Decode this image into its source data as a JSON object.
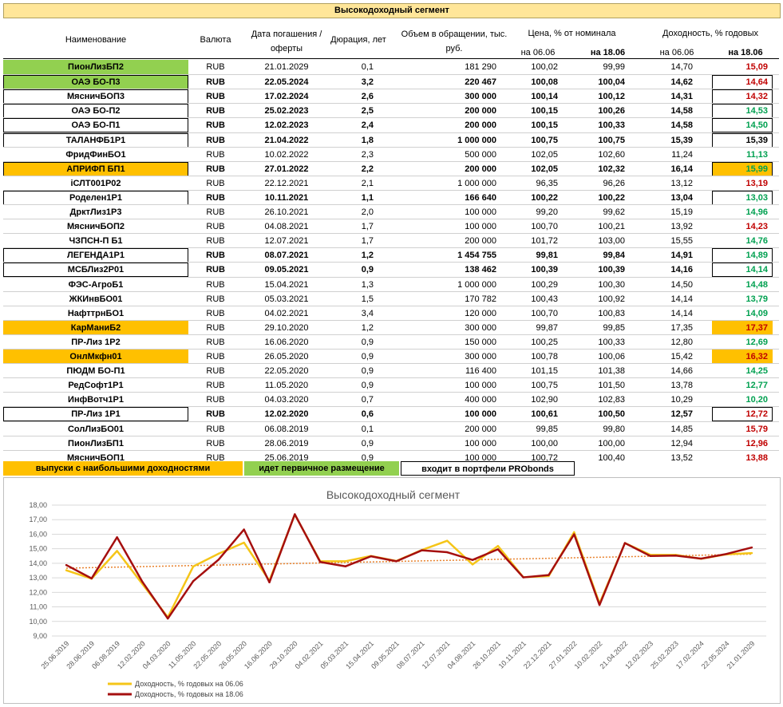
{
  "table": {
    "title": "Высокодоходный сегмент",
    "headers": {
      "name": "Наименование",
      "currency": "Валюта",
      "maturity": "Дата погашения / оферты",
      "duration": "Дюрация, лет",
      "volume": "Объем в обращении, тыс. руб.",
      "price": "Цена, % от номинала",
      "yield": "Доходность, % годовых",
      "price_d1": "на 06.06",
      "price_d2": "на 18.06",
      "yield_d1": "на 06.06",
      "yield_d2": "на 18.06"
    },
    "rows": [
      {
        "name": "ПионЛизБП2",
        "cur": "RUB",
        "date": "21.01.2029",
        "dur": "0,1",
        "vol": "181 290",
        "p1": "100,02",
        "p2": "99,99",
        "y1": "14,70",
        "y2": "15,09",
        "name_bg": "#92d050",
        "y2_color": "#c00000",
        "y2_bg": "",
        "bold": false,
        "name_box": false,
        "y2_box": false
      },
      {
        "name": "ОАЭ  БО-П3",
        "cur": "RUB",
        "date": "22.05.2024",
        "dur": "3,2",
        "vol": "220 467",
        "p1": "100,08",
        "p2": "100,04",
        "y1": "14,62",
        "y2": "14,64",
        "name_bg": "#92d050",
        "y2_color": "#c00000",
        "y2_bg": "",
        "bold": true,
        "name_box": true,
        "y2_box": true
      },
      {
        "name": "МясничБОП3",
        "cur": "RUB",
        "date": "17.02.2024",
        "dur": "2,6",
        "vol": "300 000",
        "p1": "100,14",
        "p2": "100,12",
        "y1": "14,31",
        "y2": "14,32",
        "name_bg": "",
        "y2_color": "#c00000",
        "y2_bg": "",
        "bold": true,
        "name_box": true,
        "y2_box": true
      },
      {
        "name": "ОАЭ  БО-П2",
        "cur": "RUB",
        "date": "25.02.2023",
        "dur": "2,5",
        "vol": "200 000",
        "p1": "100,15",
        "p2": "100,26",
        "y1": "14,58",
        "y2": "14,53",
        "name_bg": "",
        "y2_color": "#00a050",
        "y2_bg": "",
        "bold": true,
        "name_box": true,
        "y2_box": true
      },
      {
        "name": "ОАЭ  БО-П1",
        "cur": "RUB",
        "date": "12.02.2023",
        "dur": "2,4",
        "vol": "200 000",
        "p1": "100,15",
        "p2": "100,33",
        "y1": "14,58",
        "y2": "14,50",
        "name_bg": "",
        "y2_color": "#00a050",
        "y2_bg": "",
        "bold": true,
        "name_box": true,
        "y2_box": true
      },
      {
        "name": "ТАЛАНФБ1Р1",
        "cur": "RUB",
        "date": "21.04.2022",
        "dur": "1,8",
        "vol": "1 000 000",
        "p1": "100,75",
        "p2": "100,75",
        "y1": "15,39",
        "y2": "15,39",
        "name_bg": "",
        "y2_color": "#000000",
        "y2_bg": "",
        "bold": true,
        "name_box": true,
        "y2_box": true
      },
      {
        "name": "ФридФинБО1",
        "cur": "RUB",
        "date": "10.02.2022",
        "dur": "2,3",
        "vol": "500 000",
        "p1": "102,05",
        "p2": "102,60",
        "y1": "11,24",
        "y2": "11,13",
        "name_bg": "",
        "y2_color": "#00a050",
        "y2_bg": "",
        "bold": false,
        "name_box": false,
        "y2_box": false
      },
      {
        "name": "АПРИФП БП1",
        "cur": "RUB",
        "date": "27.01.2022",
        "dur": "2,2",
        "vol": "200 000",
        "p1": "102,05",
        "p2": "102,32",
        "y1": "16,14",
        "y2": "15,99",
        "name_bg": "#ffc000",
        "y2_color": "#00a050",
        "y2_bg": "#ffc000",
        "bold": true,
        "name_box": true,
        "y2_box": true
      },
      {
        "name": "iСЛТ001Р02",
        "cur": "RUB",
        "date": "22.12.2021",
        "dur": "2,1",
        "vol": "1 000 000",
        "p1": "96,35",
        "p2": "96,26",
        "y1": "13,12",
        "y2": "13,19",
        "name_bg": "",
        "y2_color": "#c00000",
        "y2_bg": "",
        "bold": false,
        "name_box": false,
        "y2_box": false
      },
      {
        "name": "Роделен1Р1",
        "cur": "RUB",
        "date": "10.11.2021",
        "dur": "1,1",
        "vol": "166 640",
        "p1": "100,22",
        "p2": "100,22",
        "y1": "13,04",
        "y2": "13,03",
        "name_bg": "",
        "y2_color": "#00a050",
        "y2_bg": "",
        "bold": true,
        "name_box": true,
        "y2_box": true
      },
      {
        "name": "ДрктЛиз1Р3",
        "cur": "RUB",
        "date": "26.10.2021",
        "dur": "2,0",
        "vol": "100 000",
        "p1": "99,20",
        "p2": "99,62",
        "y1": "15,19",
        "y2": "14,96",
        "name_bg": "",
        "y2_color": "#00a050",
        "y2_bg": "",
        "bold": false,
        "name_box": false,
        "y2_box": false
      },
      {
        "name": "МясничБОП2",
        "cur": "RUB",
        "date": "04.08.2021",
        "dur": "1,7",
        "vol": "100 000",
        "p1": "100,70",
        "p2": "100,21",
        "y1": "13,92",
        "y2": "14,23",
        "name_bg": "",
        "y2_color": "#c00000",
        "y2_bg": "",
        "bold": false,
        "name_box": false,
        "y2_box": false
      },
      {
        "name": "ЧЗПСН-П Б1",
        "cur": "RUB",
        "date": "12.07.2021",
        "dur": "1,7",
        "vol": "200 000",
        "p1": "101,72",
        "p2": "103,00",
        "y1": "15,55",
        "y2": "14,76",
        "name_bg": "",
        "y2_color": "#00a050",
        "y2_bg": "",
        "bold": false,
        "name_box": false,
        "y2_box": false
      },
      {
        "name": "ЛЕГЕНДА1Р1",
        "cur": "RUB",
        "date": "08.07.2021",
        "dur": "1,2",
        "vol": "1 454 755",
        "p1": "99,81",
        "p2": "99,84",
        "y1": "14,91",
        "y2": "14,89",
        "name_bg": "",
        "y2_color": "#00a050",
        "y2_bg": "",
        "bold": true,
        "name_box": true,
        "y2_box": true
      },
      {
        "name": "МСБЛиз2Р01",
        "cur": "RUB",
        "date": "09.05.2021",
        "dur": "0,9",
        "vol": "138 462",
        "p1": "100,39",
        "p2": "100,39",
        "y1": "14,16",
        "y2": "14,14",
        "name_bg": "",
        "y2_color": "#00a050",
        "y2_bg": "",
        "bold": true,
        "name_box": true,
        "y2_box": true
      },
      {
        "name": "ФЭС-АгроБ1",
        "cur": "RUB",
        "date": "15.04.2021",
        "dur": "1,3",
        "vol": "1 000 000",
        "p1": "100,29",
        "p2": "100,30",
        "y1": "14,50",
        "y2": "14,48",
        "name_bg": "",
        "y2_color": "#00a050",
        "y2_bg": "",
        "bold": false,
        "name_box": false,
        "y2_box": false
      },
      {
        "name": "ЖКИнвБО01",
        "cur": "RUB",
        "date": "05.03.2021",
        "dur": "1,5",
        "vol": "170 782",
        "p1": "100,43",
        "p2": "100,92",
        "y1": "14,14",
        "y2": "13,79",
        "name_bg": "",
        "y2_color": "#00a050",
        "y2_bg": "",
        "bold": false,
        "name_box": false,
        "y2_box": false
      },
      {
        "name": "НафттрнБО1",
        "cur": "RUB",
        "date": "04.02.2021",
        "dur": "3,4",
        "vol": "120 000",
        "p1": "100,70",
        "p2": "100,83",
        "y1": "14,14",
        "y2": "14,09",
        "name_bg": "",
        "y2_color": "#00a050",
        "y2_bg": "",
        "bold": false,
        "name_box": false,
        "y2_box": false
      },
      {
        "name": "КарМаниБ2",
        "cur": "RUB",
        "date": "29.10.2020",
        "dur": "1,2",
        "vol": "300 000",
        "p1": "99,87",
        "p2": "99,85",
        "y1": "17,35",
        "y2": "17,37",
        "name_bg": "#ffc000",
        "y2_color": "#c00000",
        "y2_bg": "#ffc000",
        "bold": false,
        "name_box": false,
        "y2_box": false
      },
      {
        "name": "ПР-Лиз 1Р2",
        "cur": "RUB",
        "date": "16.06.2020",
        "dur": "0,9",
        "vol": "150 000",
        "p1": "100,25",
        "p2": "100,33",
        "y1": "12,80",
        "y2": "12,69",
        "name_bg": "",
        "y2_color": "#00a050",
        "y2_bg": "",
        "bold": false,
        "name_box": false,
        "y2_box": false
      },
      {
        "name": "ОнлМкфн01",
        "cur": "RUB",
        "date": "26.05.2020",
        "dur": "0,9",
        "vol": "300 000",
        "p1": "100,78",
        "p2": "100,06",
        "y1": "15,42",
        "y2": "16,32",
        "name_bg": "#ffc000",
        "y2_color": "#c00000",
        "y2_bg": "#ffc000",
        "bold": false,
        "name_box": false,
        "y2_box": false
      },
      {
        "name": "ПЮДМ БО-П1",
        "cur": "RUB",
        "date": "22.05.2020",
        "dur": "0,9",
        "vol": "116 400",
        "p1": "101,15",
        "p2": "101,38",
        "y1": "14,66",
        "y2": "14,25",
        "name_bg": "",
        "y2_color": "#00a050",
        "y2_bg": "",
        "bold": false,
        "name_box": false,
        "y2_box": false
      },
      {
        "name": "РедСофт1Р1",
        "cur": "RUB",
        "date": "11.05.2020",
        "dur": "0,9",
        "vol": "100 000",
        "p1": "100,75",
        "p2": "101,50",
        "y1": "13,78",
        "y2": "12,77",
        "name_bg": "",
        "y2_color": "#00a050",
        "y2_bg": "",
        "bold": false,
        "name_box": false,
        "y2_box": false
      },
      {
        "name": "ИнфВотч1Р1",
        "cur": "RUB",
        "date": "04.03.2020",
        "dur": "0,7",
        "vol": "400 000",
        "p1": "102,90",
        "p2": "102,83",
        "y1": "10,29",
        "y2": "10,20",
        "name_bg": "",
        "y2_color": "#00a050",
        "y2_bg": "",
        "bold": false,
        "name_box": false,
        "y2_box": false
      },
      {
        "name": "ПР-Лиз 1Р1",
        "cur": "RUB",
        "date": "12.02.2020",
        "dur": "0,6",
        "vol": "100 000",
        "p1": "100,61",
        "p2": "100,50",
        "y1": "12,57",
        "y2": "12,72",
        "name_bg": "",
        "y2_color": "#c00000",
        "y2_bg": "",
        "bold": true,
        "name_box": true,
        "y2_box": true
      },
      {
        "name": "СолЛизБО01",
        "cur": "RUB",
        "date": "06.08.2019",
        "dur": "0,1",
        "vol": "200 000",
        "p1": "99,85",
        "p2": "99,80",
        "y1": "14,85",
        "y2": "15,79",
        "name_bg": "",
        "y2_color": "#c00000",
        "y2_bg": "",
        "bold": false,
        "name_box": false,
        "y2_box": false
      },
      {
        "name": "ПионЛизБП1",
        "cur": "RUB",
        "date": "28.06.2019",
        "dur": "0,9",
        "vol": "100 000",
        "p1": "100,00",
        "p2": "100,00",
        "y1": "12,94",
        "y2": "12,96",
        "name_bg": "",
        "y2_color": "#c00000",
        "y2_bg": "",
        "bold": false,
        "name_box": false,
        "y2_box": false
      },
      {
        "name": "МясничБОП1",
        "cur": "RUB",
        "date": "25.06.2019",
        "dur": "0,9",
        "vol": "100 000",
        "p1": "100,72",
        "p2": "100,40",
        "y1": "13,52",
        "y2": "13,88",
        "name_bg": "",
        "y2_color": "#c00000",
        "y2_bg": "",
        "bold": false,
        "name_box": false,
        "y2_box": false
      }
    ],
    "legend": {
      "orange": {
        "label": "выпуски с наибольшими доходностями",
        "color": "#ffc000"
      },
      "green": {
        "label": "идет первичное размещение",
        "color": "#92d050"
      },
      "boxed": {
        "label": "входит в портфели PRObonds",
        "color": "#ffffff"
      }
    }
  },
  "chart_data": {
    "type": "line",
    "title": "Высокодоходный сегмент",
    "categories": [
      "25.06.2019",
      "28.06.2019",
      "06.08.2019",
      "12.02.2020",
      "04.03.2020",
      "11.05.2020",
      "22.05.2020",
      "26.05.2020",
      "16.06.2020",
      "29.10.2020",
      "04.02.2021",
      "05.03.2021",
      "15.04.2021",
      "09.05.2021",
      "08.07.2021",
      "12.07.2021",
      "04.08.2021",
      "26.10.2021",
      "10.11.2021",
      "22.12.2021",
      "27.01.2022",
      "10.02.2022",
      "21.04.2022",
      "12.02.2023",
      "25.02.2023",
      "17.02.2024",
      "22.05.2024",
      "21.01.2029"
    ],
    "series": [
      {
        "name": "Доходность, % годовых на 06.06",
        "color": "#f5c518",
        "values": [
          13.52,
          12.94,
          14.85,
          12.57,
          10.29,
          13.78,
          14.66,
          15.42,
          12.8,
          17.35,
          14.14,
          14.14,
          14.5,
          14.16,
          14.91,
          15.55,
          13.92,
          15.19,
          13.04,
          13.12,
          16.14,
          11.24,
          15.39,
          14.58,
          14.58,
          14.31,
          14.62,
          14.7
        ]
      },
      {
        "name": "Доходность, % годовых на 18.06",
        "color": "#a50f0f",
        "values": [
          13.88,
          12.96,
          15.79,
          12.72,
          10.2,
          12.77,
          14.25,
          16.32,
          12.69,
          17.37,
          14.09,
          13.79,
          14.48,
          14.14,
          14.89,
          14.76,
          14.23,
          14.96,
          13.03,
          13.19,
          15.99,
          11.13,
          15.39,
          14.5,
          14.53,
          14.32,
          14.64,
          15.09
        ]
      }
    ],
    "trendline": {
      "color": "#e8812c",
      "style": "dotted"
    },
    "ylim": [
      9,
      18
    ],
    "yticks": [
      "9,00",
      "10,00",
      "11,00",
      "12,00",
      "13,00",
      "14,00",
      "15,00",
      "16,00",
      "17,00",
      "18,00"
    ],
    "grid": true,
    "legend_position": "bottom-left"
  }
}
